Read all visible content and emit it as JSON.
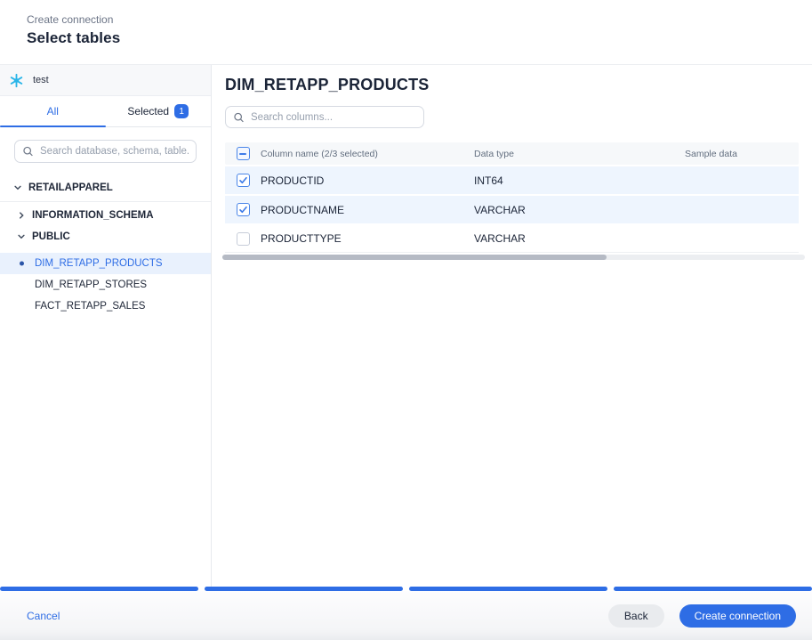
{
  "colors": {
    "accent": "#2e6de5",
    "snowflake": "#29b5e8",
    "scrollbar_thumb": "#b5bac4"
  },
  "header": {
    "breadcrumb": "Create connection",
    "title": "Select tables"
  },
  "sidebar": {
    "connection_name": "test",
    "tabs": {
      "all_label": "All",
      "selected_label": "Selected",
      "selected_count": "1"
    },
    "search_placeholder": "Search database, schema, table...",
    "tree": {
      "database": "RETAILAPPAREL",
      "schemas": [
        "INFORMATION_SCHEMA",
        "PUBLIC"
      ],
      "tables": [
        "DIM_RETAPP_PRODUCTS",
        "DIM_RETAPP_STORES",
        "FACT_RETAPP_SALES"
      ],
      "selected_table": "DIM_RETAPP_PRODUCTS"
    }
  },
  "main": {
    "table_title": "DIM_RETAPP_PRODUCTS",
    "search_placeholder": "Search columns...",
    "columns": {
      "header_name": "Column name (2/3 selected)",
      "header_type": "Data type",
      "header_sample": "Sample data",
      "rows": [
        {
          "name": "PRODUCTID",
          "type": "INT64",
          "sample": "",
          "checked": true
        },
        {
          "name": "PRODUCTNAME",
          "type": "VARCHAR",
          "sample": "",
          "checked": true
        },
        {
          "name": "PRODUCTTYPE",
          "type": "VARCHAR",
          "sample": "",
          "checked": false
        }
      ]
    }
  },
  "footer": {
    "cancel_label": "Cancel",
    "back_label": "Back",
    "create_label": "Create connection",
    "progress": {
      "segments": 4,
      "completed": 4
    }
  }
}
